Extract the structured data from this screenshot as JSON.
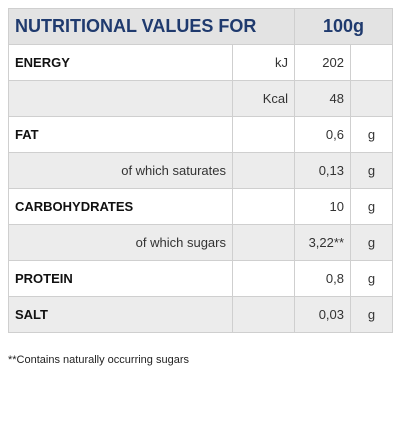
{
  "header": {
    "title": "NUTRITIONAL VALUES FOR",
    "amount": "100g"
  },
  "rows": [
    {
      "label": "ENERGY",
      "unit": "kJ",
      "value": "202"
    },
    {
      "unit": "Kcal",
      "value": "48"
    },
    {
      "label": "FAT",
      "value": "0,6",
      "unit_right": "g"
    },
    {
      "sublabel": "of which saturates",
      "value": "0,13",
      "unit_right": "g"
    },
    {
      "label": "CARBOHYDRATES",
      "value": "10",
      "unit_right": "g"
    },
    {
      "sublabel": "of which sugars",
      "value": "3,22**",
      "unit_right": "g"
    },
    {
      "label": "PROTEIN",
      "value": "0,8",
      "unit_right": "g"
    },
    {
      "label": "SALT",
      "value": "0,03",
      "unit_right": "g"
    }
  ],
  "footnote": "**Contains naturally occurring sugars"
}
